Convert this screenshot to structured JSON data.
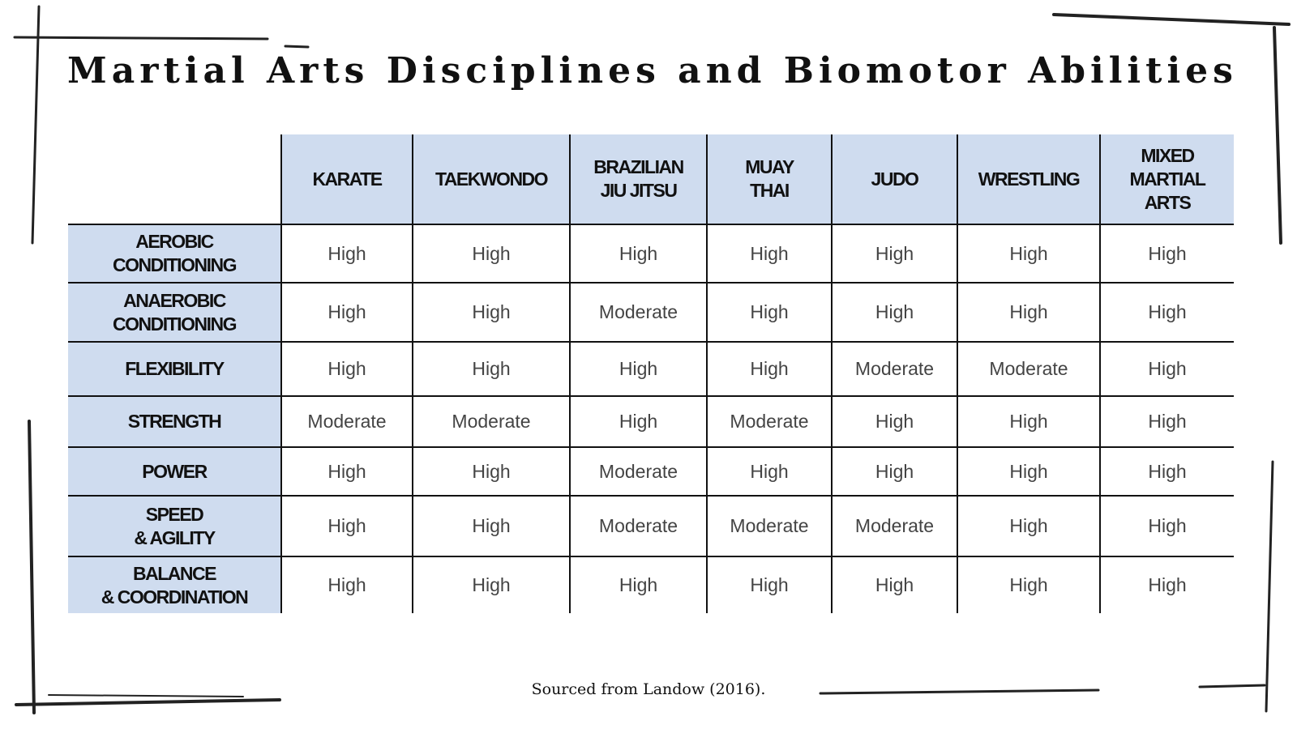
{
  "title": "Martial Arts Disciplines and Biomotor Abilities",
  "table": {
    "columns": [
      [
        "KARATE"
      ],
      [
        "TAEKWONDO"
      ],
      [
        "BRAZILIAN",
        "JIU JITSU"
      ],
      [
        "MUAY",
        "THAI"
      ],
      [
        "JUDO"
      ],
      [
        "WRESTLING"
      ],
      [
        "MIXED",
        "MARTIAL",
        "ARTS"
      ]
    ],
    "rows": [
      {
        "label": [
          "AEROBIC",
          "CONDITIONING"
        ],
        "cells": [
          "High",
          "High",
          "High",
          "High",
          "High",
          "High",
          "High"
        ]
      },
      {
        "label": [
          "ANAEROBIC",
          "CONDITIONING"
        ],
        "cells": [
          "High",
          "High",
          "Moderate",
          "High",
          "High",
          "High",
          "High"
        ]
      },
      {
        "label": [
          "FLEXIBILITY"
        ],
        "cells": [
          "High",
          "High",
          "High",
          "High",
          "Moderate",
          "Moderate",
          "High"
        ]
      },
      {
        "label": [
          "STRENGTH"
        ],
        "cells": [
          "Moderate",
          "Moderate",
          "High",
          "Moderate",
          "High",
          "High",
          "High"
        ]
      },
      {
        "label": [
          "POWER"
        ],
        "cells": [
          "High",
          "High",
          "Moderate",
          "High",
          "High",
          "High",
          "High"
        ]
      },
      {
        "label": [
          "SPEED",
          "& AGILITY"
        ],
        "cells": [
          "High",
          "High",
          "Moderate",
          "Moderate",
          "Moderate",
          "High",
          "High"
        ]
      },
      {
        "label": [
          "BALANCE",
          "& COORDINATION"
        ],
        "cells": [
          "High",
          "High",
          "High",
          "High",
          "High",
          "High",
          "High"
        ]
      }
    ]
  },
  "footer": "Sourced from Landow (2016)."
}
